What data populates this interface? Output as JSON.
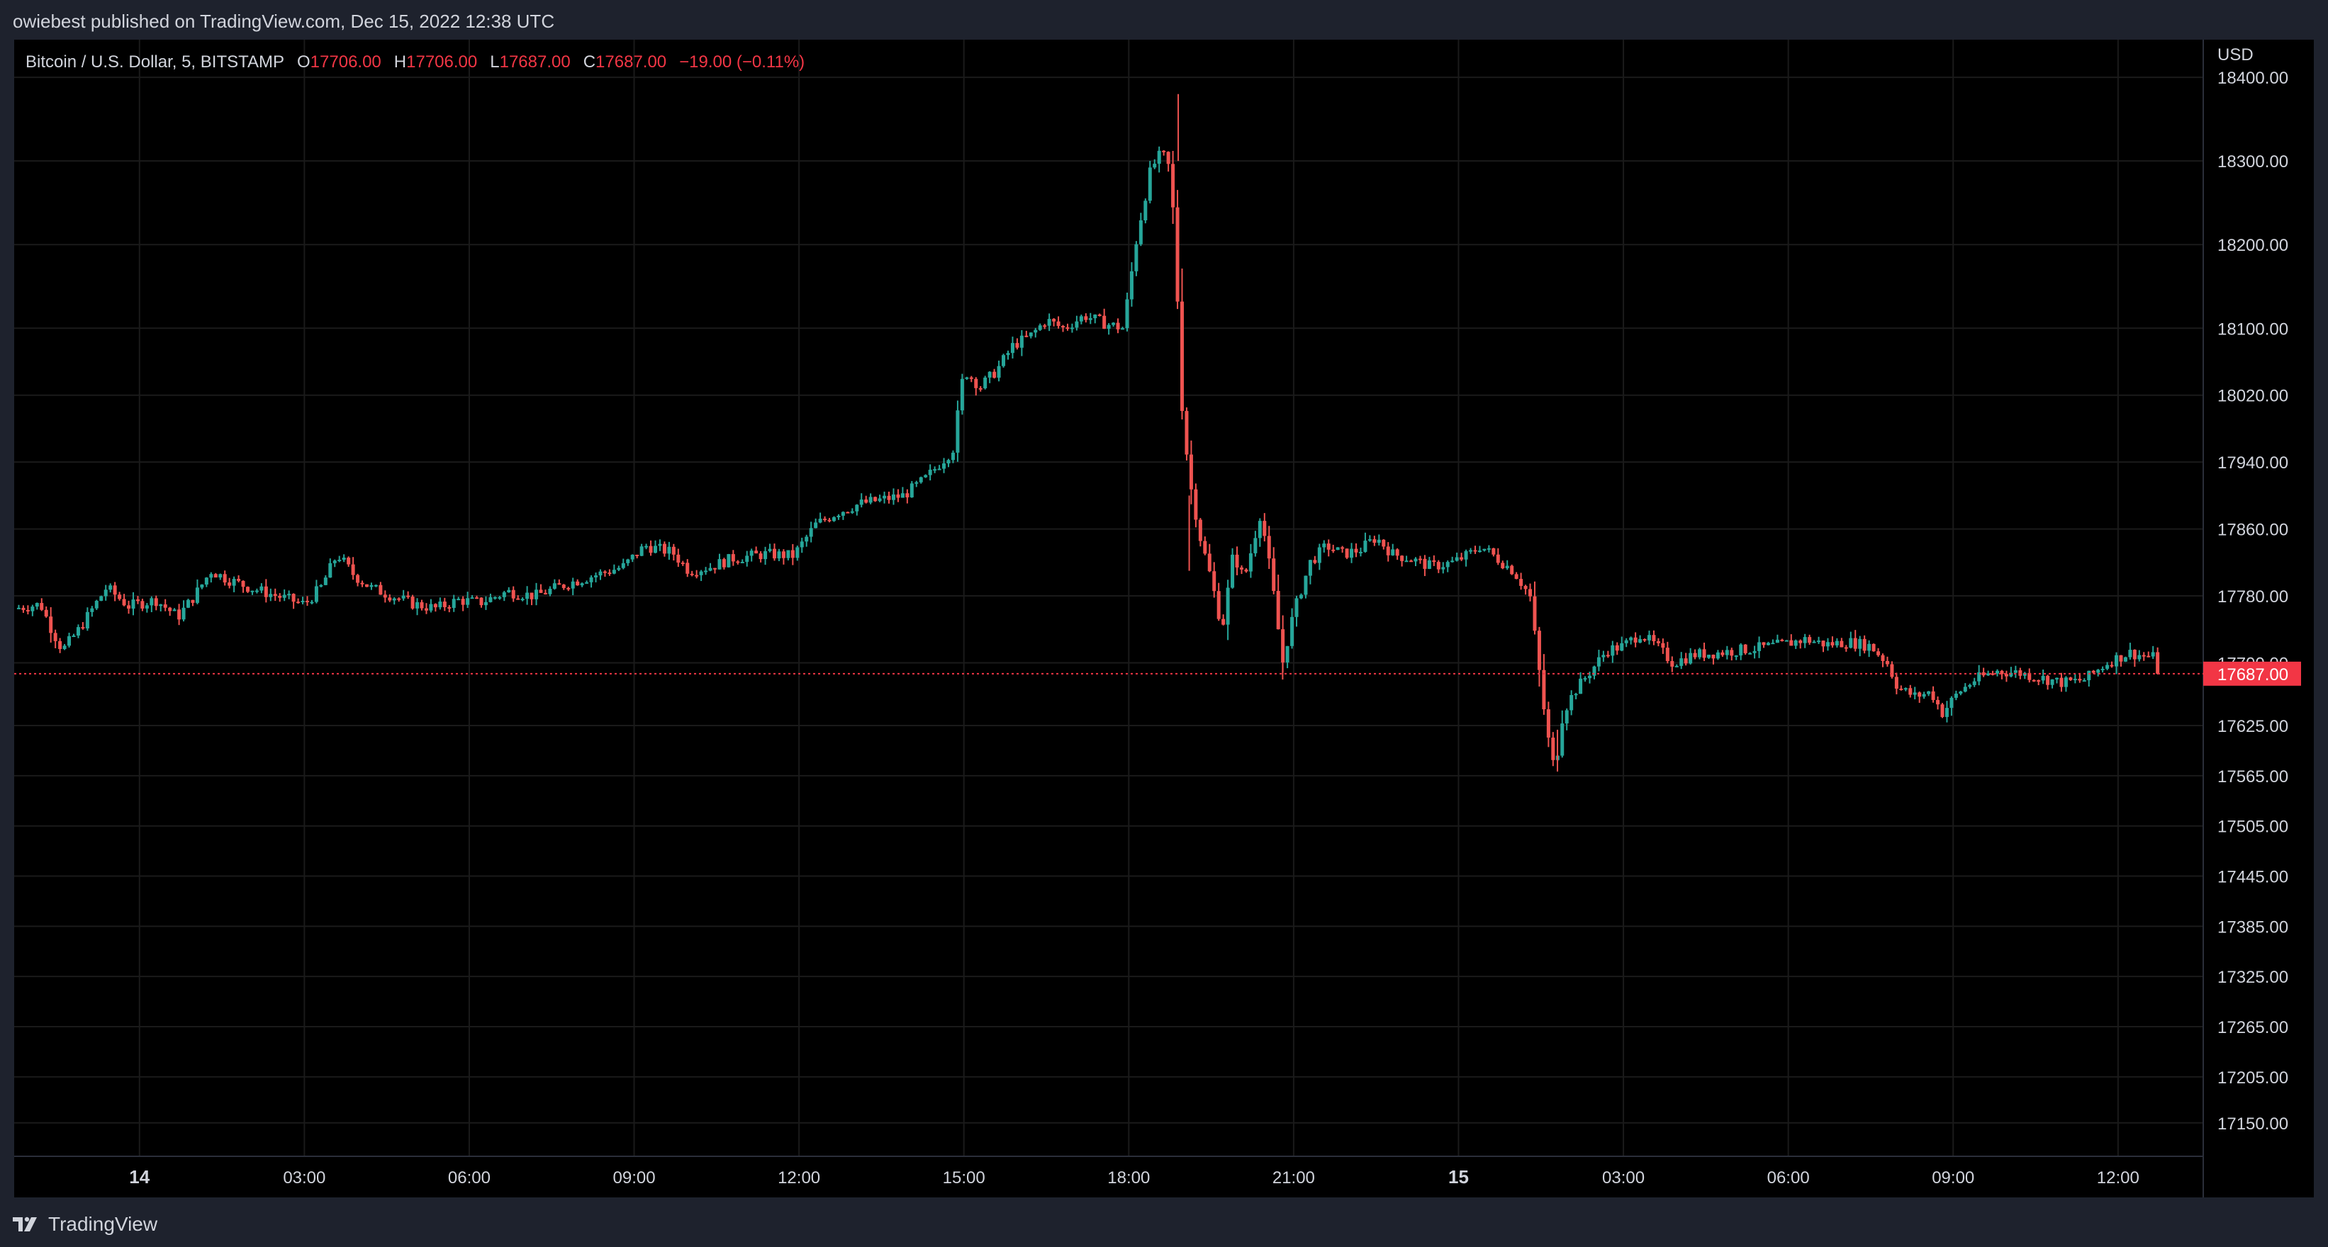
{
  "header": {
    "published_text": "owiebest published on TradingView.com, Dec 15, 2022 12:38 UTC"
  },
  "legend": {
    "symbol": "Bitcoin / U.S. Dollar, 5, BITSTAMP",
    "open_label": "O",
    "open": "17706.00",
    "high_label": "H",
    "high": "17706.00",
    "low_label": "L",
    "low": "17687.00",
    "close_label": "C",
    "close": "17687.00",
    "change": "−19.00 (−0.11%)"
  },
  "price_scale": {
    "currency": "USD",
    "last_price_label": "17687.00",
    "ticks": [
      "18400.00",
      "18300.00",
      "18200.00",
      "18100.00",
      "18020.00",
      "17940.00",
      "17860.00",
      "17780.00",
      "17700.00",
      "17625.00",
      "17565.00",
      "17505.00",
      "17445.00",
      "17385.00",
      "17325.00",
      "17265.00",
      "17205.00",
      "17150.00"
    ]
  },
  "footer": {
    "brand": "TradingView"
  },
  "colors": {
    "up": "#26a69a",
    "down": "#ef5350",
    "background": "#000000",
    "grid": "#1a1a1a",
    "text": "#d1d4dc",
    "last_price": "#f23645"
  },
  "chart_data": {
    "type": "candlestick",
    "interval": "5",
    "x_tick_labels": [
      {
        "t": 0,
        "label": "14"
      },
      {
        "t": 3,
        "label": "03:00"
      },
      {
        "t": 6,
        "label": "06:00"
      },
      {
        "t": 9,
        "label": "09:00"
      },
      {
        "t": 12,
        "label": "12:00"
      },
      {
        "t": 15,
        "label": "15:00"
      },
      {
        "t": 18,
        "label": "18:00"
      },
      {
        "t": 21,
        "label": "21:00"
      },
      {
        "t": 24,
        "label": "15"
      },
      {
        "t": 27,
        "label": "03:00"
      },
      {
        "t": 30,
        "label": "06:00"
      },
      {
        "t": 33,
        "label": "09:00"
      },
      {
        "t": 36,
        "label": "12:00"
      }
    ],
    "x_range_hours": [
      -2.28,
      37.55
    ],
    "y_range": [
      17110,
      18445
    ],
    "last_price": 17687,
    "close_path": [
      [
        -2.28,
        17765
      ],
      [
        -1.8,
        17770
      ],
      [
        -1.6,
        17740
      ],
      [
        -1.4,
        17715
      ],
      [
        -1.1,
        17740
      ],
      [
        -0.6,
        17790
      ],
      [
        -0.2,
        17768
      ],
      [
        0.3,
        17775
      ],
      [
        0.7,
        17755
      ],
      [
        1.0,
        17780
      ],
      [
        1.3,
        17810
      ],
      [
        1.6,
        17800
      ],
      [
        2.0,
        17790
      ],
      [
        2.5,
        17780
      ],
      [
        3.0,
        17770
      ],
      [
        3.3,
        17790
      ],
      [
        3.6,
        17830
      ],
      [
        3.9,
        17805
      ],
      [
        4.2,
        17790
      ],
      [
        4.6,
        17780
      ],
      [
        5.0,
        17770
      ],
      [
        5.4,
        17765
      ],
      [
        5.8,
        17775
      ],
      [
        6.2,
        17772
      ],
      [
        6.7,
        17785
      ],
      [
        7.2,
        17780
      ],
      [
        7.8,
        17795
      ],
      [
        8.3,
        17805
      ],
      [
        8.8,
        17815
      ],
      [
        9.2,
        17840
      ],
      [
        9.7,
        17832
      ],
      [
        10.0,
        17810
      ],
      [
        10.4,
        17815
      ],
      [
        10.8,
        17825
      ],
      [
        11.4,
        17830
      ],
      [
        11.9,
        17828
      ],
      [
        12.3,
        17865
      ],
      [
        12.7,
        17880
      ],
      [
        13.1,
        17890
      ],
      [
        13.5,
        17895
      ],
      [
        13.9,
        17900
      ],
      [
        14.3,
        17920
      ],
      [
        14.8,
        17955
      ],
      [
        15.0,
        18050
      ],
      [
        15.3,
        18030
      ],
      [
        15.6,
        18050
      ],
      [
        15.9,
        18080
      ],
      [
        16.2,
        18090
      ],
      [
        16.5,
        18110
      ],
      [
        16.8,
        18100
      ],
      [
        17.2,
        18115
      ],
      [
        17.6,
        18105
      ],
      [
        17.9,
        18100
      ],
      [
        18.15,
        18210
      ],
      [
        18.4,
        18290
      ],
      [
        18.6,
        18310
      ],
      [
        18.75,
        18290
      ],
      [
        18.85,
        18200
      ],
      [
        18.95,
        18020
      ],
      [
        19.1,
        17920
      ],
      [
        19.3,
        17850
      ],
      [
        19.5,
        17800
      ],
      [
        19.7,
        17740
      ],
      [
        19.9,
        17830
      ],
      [
        20.1,
        17800
      ],
      [
        20.4,
        17880
      ],
      [
        20.6,
        17800
      ],
      [
        20.8,
        17700
      ],
      [
        21.0,
        17760
      ],
      [
        21.3,
        17820
      ],
      [
        21.6,
        17840
      ],
      [
        21.9,
        17830
      ],
      [
        22.2,
        17835
      ],
      [
        22.5,
        17850
      ],
      [
        22.8,
        17830
      ],
      [
        23.1,
        17825
      ],
      [
        23.5,
        17815
      ],
      [
        23.9,
        17820
      ],
      [
        24.2,
        17830
      ],
      [
        24.4,
        17840
      ],
      [
        24.7,
        17825
      ],
      [
        25.0,
        17810
      ],
      [
        25.3,
        17780
      ],
      [
        25.45,
        17700
      ],
      [
        25.6,
        17620
      ],
      [
        25.75,
        17570
      ],
      [
        25.9,
        17640
      ],
      [
        26.1,
        17665
      ],
      [
        26.4,
        17690
      ],
      [
        26.7,
        17715
      ],
      [
        27.0,
        17720
      ],
      [
        27.3,
        17735
      ],
      [
        27.6,
        17720
      ],
      [
        27.9,
        17700
      ],
      [
        28.3,
        17710
      ],
      [
        28.7,
        17712
      ],
      [
        29.1,
        17715
      ],
      [
        29.5,
        17718
      ],
      [
        29.9,
        17722
      ],
      [
        30.3,
        17728
      ],
      [
        30.7,
        17722
      ],
      [
        31.1,
        17725
      ],
      [
        31.5,
        17720
      ],
      [
        31.8,
        17700
      ],
      [
        32.0,
        17670
      ],
      [
        32.3,
        17660
      ],
      [
        32.6,
        17665
      ],
      [
        32.8,
        17640
      ],
      [
        33.1,
        17665
      ],
      [
        33.4,
        17680
      ],
      [
        33.8,
        17690
      ],
      [
        34.2,
        17688
      ],
      [
        34.6,
        17682
      ],
      [
        35.0,
        17676
      ],
      [
        35.4,
        17680
      ],
      [
        35.8,
        17700
      ],
      [
        36.2,
        17712
      ],
      [
        36.5,
        17708
      ],
      [
        36.7,
        17706
      ],
      [
        36.73,
        17687
      ]
    ]
  }
}
